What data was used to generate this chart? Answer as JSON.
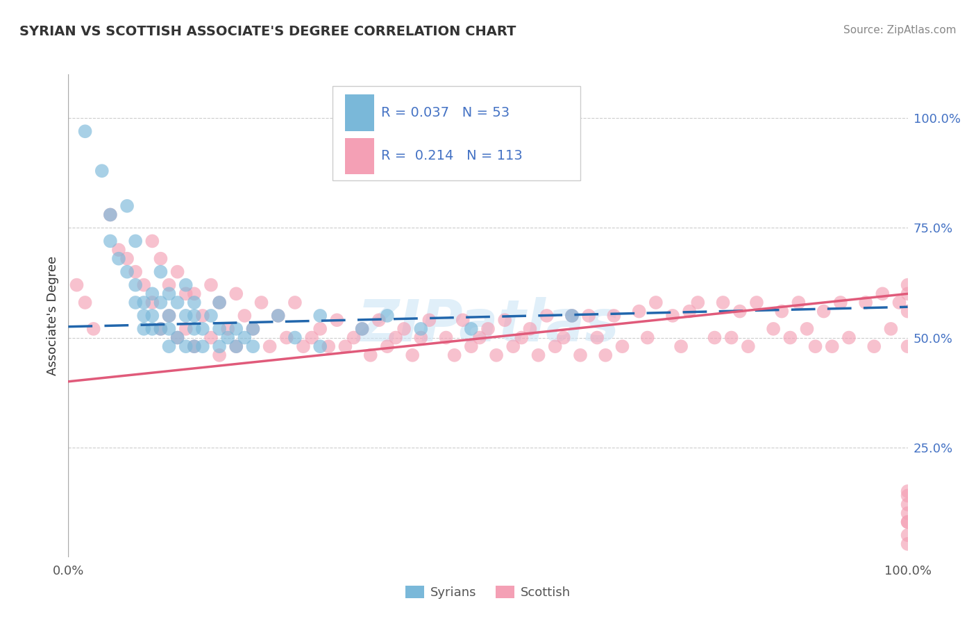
{
  "title": "SYRIAN VS SCOTTISH ASSOCIATE'S DEGREE CORRELATION CHART",
  "source_text": "Source: ZipAtlas.com",
  "ylabel": "Associate's Degree",
  "xmin": 0.0,
  "xmax": 100.0,
  "ymin": 0.0,
  "ymax": 110.0,
  "syrians_R": 0.037,
  "syrians_N": 53,
  "scottish_R": 0.214,
  "scottish_N": 113,
  "syrian_color": "#7ab8d9",
  "scottish_color": "#f4a0b5",
  "syrian_line_color": "#2166ac",
  "scottish_line_color": "#e05a7a",
  "watermark": "ZIPatlas",
  "legend_label_syrian": "Syrians",
  "legend_label_scottish": "Scottish",
  "ytick_values": [
    25,
    50,
    75,
    100
  ],
  "xtick_values": [
    0,
    100
  ],
  "syrians_x": [
    2,
    4,
    5,
    5,
    6,
    7,
    7,
    8,
    8,
    8,
    9,
    9,
    9,
    10,
    10,
    10,
    11,
    11,
    11,
    12,
    12,
    12,
    12,
    13,
    13,
    14,
    14,
    14,
    15,
    15,
    15,
    15,
    16,
    16,
    17,
    18,
    18,
    18,
    19,
    20,
    20,
    21,
    22,
    22,
    25,
    27,
    30,
    30,
    35,
    38,
    42,
    48,
    60
  ],
  "syrians_y": [
    97,
    88,
    78,
    72,
    68,
    65,
    80,
    72,
    62,
    58,
    58,
    52,
    55,
    60,
    55,
    52,
    65,
    58,
    52,
    60,
    55,
    52,
    48,
    58,
    50,
    62,
    55,
    48,
    58,
    52,
    48,
    55,
    52,
    48,
    55,
    58,
    52,
    48,
    50,
    52,
    48,
    50,
    52,
    48,
    55,
    50,
    55,
    48,
    52,
    55,
    52,
    52,
    55
  ],
  "scottish_x": [
    1,
    2,
    3,
    5,
    6,
    7,
    8,
    9,
    10,
    10,
    11,
    11,
    12,
    12,
    13,
    13,
    14,
    14,
    15,
    15,
    16,
    17,
    17,
    18,
    18,
    19,
    20,
    20,
    21,
    22,
    23,
    24,
    25,
    26,
    27,
    28,
    29,
    30,
    31,
    32,
    33,
    34,
    35,
    36,
    37,
    38,
    39,
    40,
    41,
    42,
    43,
    45,
    46,
    47,
    48,
    49,
    50,
    51,
    52,
    53,
    54,
    55,
    56,
    57,
    58,
    59,
    60,
    61,
    62,
    63,
    64,
    65,
    66,
    68,
    69,
    70,
    72,
    73,
    74,
    75,
    77,
    78,
    79,
    80,
    81,
    82,
    84,
    85,
    86,
    87,
    88,
    89,
    90,
    91,
    92,
    93,
    95,
    96,
    97,
    98,
    99,
    100,
    100,
    100,
    100,
    100,
    100,
    100,
    100,
    100,
    100,
    100,
    100
  ],
  "scottish_y": [
    62,
    58,
    52,
    78,
    70,
    68,
    65,
    62,
    72,
    58,
    68,
    52,
    62,
    55,
    65,
    50,
    60,
    52,
    60,
    48,
    55,
    62,
    50,
    58,
    46,
    52,
    60,
    48,
    55,
    52,
    58,
    48,
    55,
    50,
    58,
    48,
    50,
    52,
    48,
    54,
    48,
    50,
    52,
    46,
    54,
    48,
    50,
    52,
    46,
    50,
    54,
    50,
    46,
    54,
    48,
    50,
    52,
    46,
    54,
    48,
    50,
    52,
    46,
    55,
    48,
    50,
    55,
    46,
    55,
    50,
    46,
    55,
    48,
    56,
    50,
    58,
    55,
    48,
    56,
    58,
    50,
    58,
    50,
    56,
    48,
    58,
    52,
    56,
    50,
    58,
    52,
    48,
    56,
    48,
    58,
    50,
    58,
    48,
    60,
    52,
    58,
    10,
    15,
    8,
    62,
    60,
    5,
    12,
    56,
    8,
    14,
    3,
    48
  ]
}
